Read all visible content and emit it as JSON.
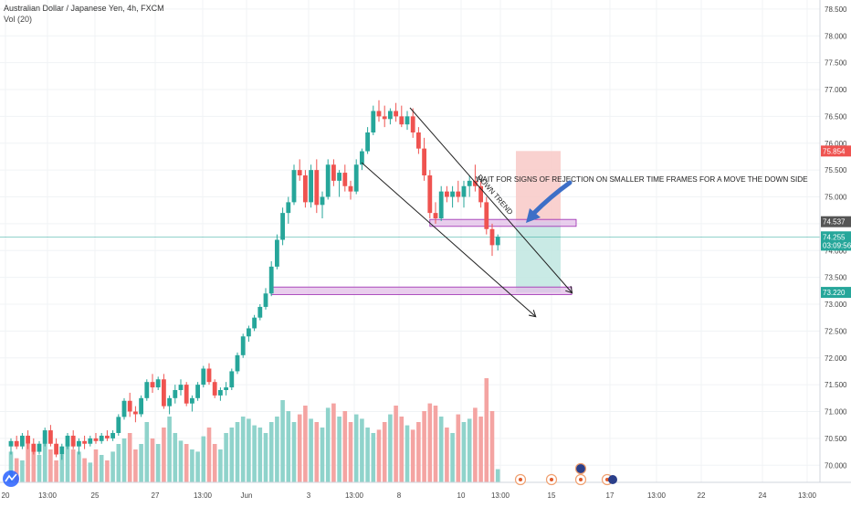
{
  "header": {
    "symbol_line": "Australian Dollar / Japanese Yen, 4h, FXCM",
    "volume_label": "Vol (20)"
  },
  "colors": {
    "up": "#26a69a",
    "down": "#ef5350",
    "up_volume": "#8fd3cb",
    "down_volume": "#f4a4a2",
    "zone_fill": "#e1bee7",
    "zone_stroke": "#9c27b0",
    "stop_zone": "#f8c9c7",
    "target_zone": "#bfe6e1",
    "arrow": "#3d6fc7"
  },
  "price_axis": {
    "ticks": [
      "78.500",
      "78.000",
      "77.500",
      "77.000",
      "76.500",
      "76.000",
      "75.500",
      "75.000",
      "74.500",
      "74.000",
      "73.500",
      "73.000",
      "72.500",
      "72.000",
      "71.500",
      "71.000",
      "70.500",
      "70.000"
    ],
    "labels": [
      {
        "value": 75.854,
        "text": "75.854",
        "color": "#ef5350"
      },
      {
        "value": 74.537,
        "text": "74.537",
        "color": "#555555"
      },
      {
        "value": 74.255,
        "text": "74.255",
        "color": "#26a69a"
      },
      {
        "value": 74.1,
        "text": "03:09:56",
        "color": "#26a69a"
      },
      {
        "value": 73.22,
        "text": "73.220",
        "color": "#26a69a"
      }
    ]
  },
  "time_axis": [
    "20",
    "13:00",
    "25",
    "27",
    "13:00",
    "Jun",
    "3",
    "13:00",
    "8",
    "10",
    "13:00",
    "15",
    "17",
    "13:00",
    "22",
    "24",
    "13:00"
  ],
  "annotations": {
    "trend_label": "DOWN TREND",
    "note": "WAIT FOR SIGNS OF REJECTION ON SMALLER TIME FRAMES FOR A MOVE THE DOWN SIDE"
  },
  "chart_data": {
    "type": "candlestick",
    "title": "Australian Dollar / Japanese Yen, 4h, FXCM",
    "ylim": [
      69.8,
      78.6
    ],
    "last_price": 74.255,
    "candles": [
      [
        70.35,
        70.5,
        70.2,
        70.45
      ],
      [
        70.45,
        70.55,
        70.3,
        70.35
      ],
      [
        70.35,
        70.6,
        70.3,
        70.55
      ],
      [
        70.55,
        70.65,
        70.3,
        70.4
      ],
      [
        70.4,
        70.5,
        70.2,
        70.25
      ],
      [
        70.25,
        70.45,
        70.2,
        70.4
      ],
      [
        70.4,
        70.7,
        70.35,
        70.65
      ],
      [
        70.65,
        70.75,
        70.35,
        70.4
      ],
      [
        70.4,
        70.5,
        70.15,
        70.2
      ],
      [
        70.2,
        70.4,
        70.1,
        70.35
      ],
      [
        70.35,
        70.6,
        70.3,
        70.55
      ],
      [
        70.55,
        70.65,
        70.3,
        70.35
      ],
      [
        70.35,
        70.5,
        70.2,
        70.45
      ],
      [
        70.45,
        70.55,
        70.3,
        70.4
      ],
      [
        70.4,
        70.55,
        70.35,
        70.5
      ],
      [
        70.5,
        70.6,
        70.4,
        70.45
      ],
      [
        70.45,
        70.6,
        70.4,
        70.55
      ],
      [
        70.55,
        70.65,
        70.45,
        70.5
      ],
      [
        70.5,
        70.65,
        70.45,
        70.6
      ],
      [
        70.6,
        70.95,
        70.55,
        70.9
      ],
      [
        70.9,
        71.25,
        70.85,
        71.2
      ],
      [
        71.2,
        71.35,
        70.9,
        71.0
      ],
      [
        71.0,
        71.1,
        70.8,
        70.95
      ],
      [
        70.95,
        71.3,
        70.9,
        71.25
      ],
      [
        71.25,
        71.6,
        71.2,
        71.55
      ],
      [
        71.55,
        71.7,
        71.35,
        71.45
      ],
      [
        71.45,
        71.65,
        71.4,
        71.6
      ],
      [
        71.6,
        71.7,
        71.05,
        71.1
      ],
      [
        71.1,
        71.3,
        70.95,
        71.25
      ],
      [
        71.25,
        71.5,
        71.15,
        71.4
      ],
      [
        71.4,
        71.6,
        71.3,
        71.5
      ],
      [
        71.5,
        71.55,
        71.1,
        71.15
      ],
      [
        71.15,
        71.3,
        71.0,
        71.25
      ],
      [
        71.25,
        71.55,
        71.2,
        71.5
      ],
      [
        71.5,
        71.85,
        71.45,
        71.8
      ],
      [
        71.8,
        71.9,
        71.5,
        71.55
      ],
      [
        71.55,
        71.6,
        71.25,
        71.3
      ],
      [
        71.3,
        71.45,
        71.2,
        71.4
      ],
      [
        71.4,
        71.55,
        71.3,
        71.45
      ],
      [
        71.45,
        71.8,
        71.4,
        71.75
      ],
      [
        71.75,
        72.1,
        71.7,
        72.05
      ],
      [
        72.05,
        72.45,
        72.0,
        72.4
      ],
      [
        72.4,
        72.6,
        72.3,
        72.55
      ],
      [
        72.55,
        72.8,
        72.5,
        72.75
      ],
      [
        72.75,
        73.0,
        72.7,
        72.95
      ],
      [
        72.95,
        73.3,
        72.9,
        73.2
      ],
      [
        73.2,
        73.8,
        73.15,
        73.7
      ],
      [
        73.7,
        74.3,
        73.65,
        74.2
      ],
      [
        74.2,
        74.8,
        74.1,
        74.7
      ],
      [
        74.7,
        75.0,
        74.5,
        74.9
      ],
      [
        74.9,
        75.6,
        74.85,
        75.5
      ],
      [
        75.5,
        75.7,
        75.3,
        75.4
      ],
      [
        75.4,
        75.5,
        74.8,
        74.9
      ],
      [
        74.9,
        75.6,
        74.8,
        75.5
      ],
      [
        75.5,
        75.7,
        74.7,
        74.85
      ],
      [
        74.85,
        75.1,
        74.6,
        75.0
      ],
      [
        75.0,
        75.7,
        74.95,
        75.6
      ],
      [
        75.6,
        75.7,
        75.2,
        75.3
      ],
      [
        75.3,
        75.5,
        75.0,
        75.45
      ],
      [
        75.45,
        75.6,
        75.1,
        75.2
      ],
      [
        75.2,
        75.3,
        74.95,
        75.1
      ],
      [
        75.1,
        75.7,
        75.05,
        75.6
      ],
      [
        75.6,
        75.9,
        75.5,
        75.85
      ],
      [
        75.85,
        76.3,
        75.8,
        76.2
      ],
      [
        76.2,
        76.7,
        76.15,
        76.6
      ],
      [
        76.6,
        76.8,
        76.4,
        76.5
      ],
      [
        76.5,
        76.7,
        76.3,
        76.45
      ],
      [
        76.45,
        76.65,
        76.35,
        76.6
      ],
      [
        76.6,
        76.75,
        76.4,
        76.5
      ],
      [
        76.5,
        76.7,
        76.3,
        76.35
      ],
      [
        76.35,
        76.6,
        76.25,
        76.5
      ],
      [
        76.5,
        76.65,
        76.1,
        76.2
      ],
      [
        76.2,
        76.3,
        75.8,
        75.9
      ],
      [
        75.9,
        76.1,
        75.3,
        75.4
      ],
      [
        75.4,
        75.5,
        74.6,
        74.7
      ],
      [
        74.7,
        74.9,
        74.5,
        74.6
      ],
      [
        74.6,
        75.2,
        74.55,
        75.1
      ],
      [
        75.1,
        75.2,
        74.9,
        75.0
      ],
      [
        75.0,
        75.2,
        74.8,
        75.1
      ],
      [
        75.1,
        75.3,
        74.9,
        75.0
      ],
      [
        75.0,
        75.3,
        74.8,
        75.2
      ],
      [
        75.2,
        75.4,
        75.0,
        75.3
      ],
      [
        75.3,
        75.6,
        75.1,
        75.2
      ],
      [
        75.2,
        75.3,
        74.8,
        74.9
      ],
      [
        74.9,
        75.0,
        74.3,
        74.4
      ],
      [
        74.4,
        74.5,
        73.9,
        74.1
      ],
      [
        74.1,
        74.3,
        74.0,
        74.255
      ]
    ],
    "volumes": [
      0.28,
      0.22,
      0.2,
      0.35,
      0.3,
      0.25,
      0.45,
      0.3,
      0.2,
      0.25,
      0.35,
      0.3,
      0.28,
      0.22,
      0.18,
      0.3,
      0.25,
      0.2,
      0.28,
      0.35,
      0.4,
      0.45,
      0.3,
      0.35,
      0.55,
      0.4,
      0.35,
      0.5,
      0.6,
      0.45,
      0.38,
      0.35,
      0.3,
      0.28,
      0.42,
      0.5,
      0.35,
      0.3,
      0.45,
      0.5,
      0.55,
      0.6,
      0.58,
      0.52,
      0.5,
      0.45,
      0.55,
      0.6,
      0.75,
      0.65,
      0.55,
      0.62,
      0.7,
      0.58,
      0.55,
      0.5,
      0.68,
      0.72,
      0.6,
      0.65,
      0.55,
      0.62,
      0.58,
      0.5,
      0.45,
      0.48,
      0.55,
      0.62,
      0.7,
      0.6,
      0.52,
      0.48,
      0.55,
      0.65,
      0.72,
      0.7,
      0.6,
      0.5,
      0.45,
      0.62,
      0.55,
      0.58,
      0.68,
      0.6,
      0.95,
      0.65,
      0.12
    ],
    "zones": [
      {
        "low": 74.45,
        "high": 74.58,
        "x_start": 74,
        "x_end": 110
      },
      {
        "low": 73.18,
        "high": 73.32,
        "x_start": 45,
        "x_end": 110
      }
    ],
    "trade_box": {
      "stop": 75.854,
      "entry": 74.537,
      "target": 73.22
    }
  }
}
